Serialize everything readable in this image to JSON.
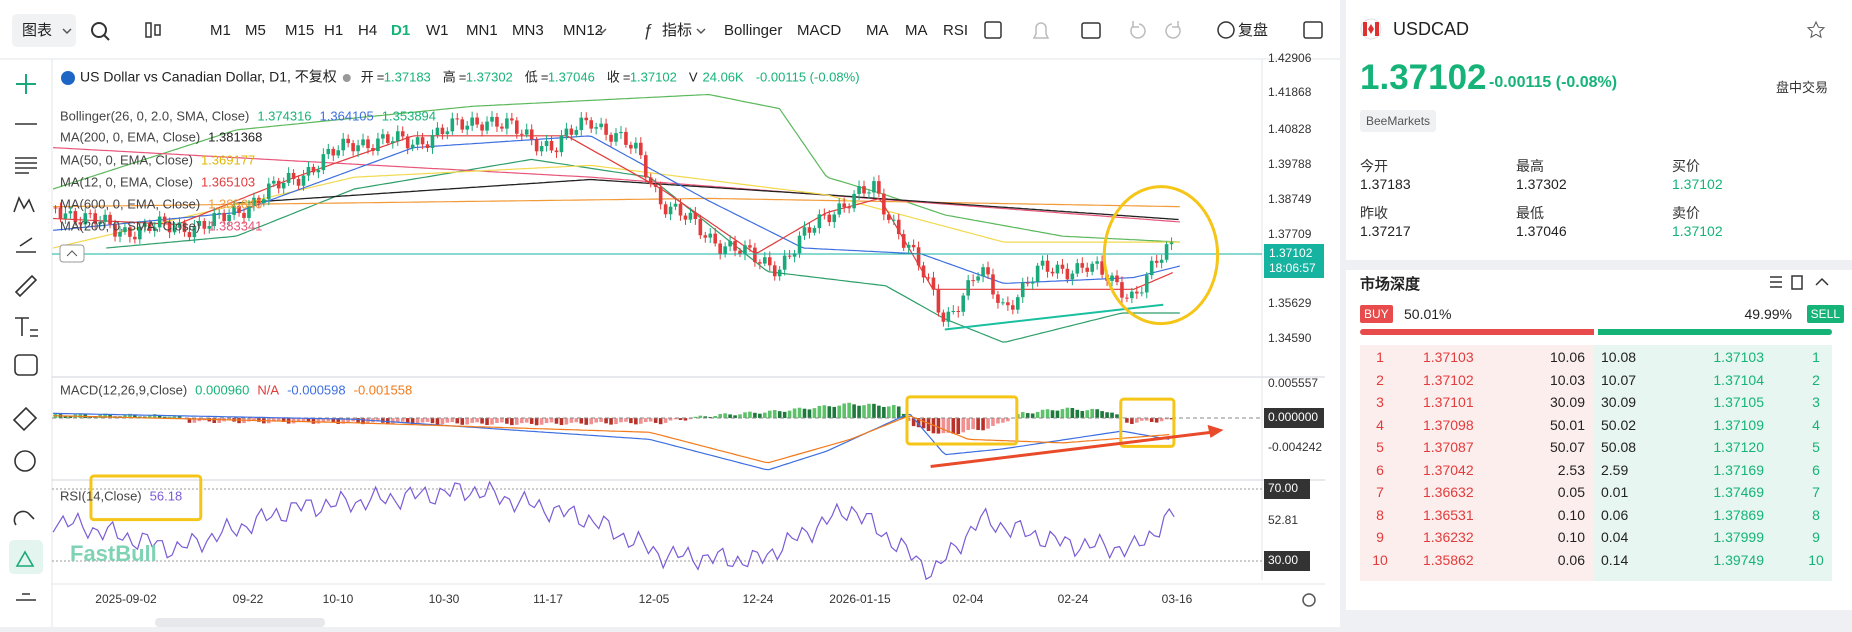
{
  "toolbar": {
    "chart_menu": "图表",
    "intervals": [
      "M1",
      "M5",
      "M15",
      "H1",
      "H4",
      "D1",
      "W1",
      "MN1",
      "MN3",
      "MN12"
    ],
    "indicator_menu": "指标",
    "indicators": [
      "Bollinger",
      "MACD",
      "MA",
      "MA",
      "RSI"
    ],
    "replay": "复盘"
  },
  "chart": {
    "title": "US Dollar vs Canadian Dollar, D1, 不复权",
    "quote": [
      {
        "label": "开",
        "value": "1.37183"
      },
      {
        "label": "高",
        "value": "1.37302"
      },
      {
        "label": "低",
        "value": "1.37046"
      },
      {
        "label": "收",
        "value": "1.37102"
      },
      {
        "label": "V",
        "value": "24.06K"
      }
    ],
    "change": "-0.00115 (-0.08%)",
    "indicators": [
      {
        "name": "Bollinger(26, 0, 2.0, SMA, Close)",
        "values": [
          "1.374316",
          "1.364105",
          "1.353894"
        ]
      },
      {
        "name": "MA(200, 0, EMA, Close)",
        "values": [
          "1.381368"
        ]
      },
      {
        "name": "MA(50, 0, EMA, Close)",
        "values": [
          "1.369177"
        ]
      },
      {
        "name": "MA(12, 0, EMA, Close)",
        "values": [
          "1.365103"
        ]
      },
      {
        "name": "MA(600, 0, EMA, Close)",
        "values": [
          "1.385640"
        ]
      },
      {
        "name": "MA(200, 0, SMA, Close)",
        "values": [
          "1.383341"
        ]
      }
    ],
    "price_axis": [
      "1.42906",
      "1.41868",
      "1.40828",
      "1.39788",
      "1.38749",
      "1.37709",
      "1.35629",
      "1.34590"
    ],
    "last_price": "1.37102",
    "countdown": "18:06:57",
    "macd": {
      "name": "MACD(12,26,9,Close)",
      "values": [
        "0.000960",
        "N/A",
        "-0.000598",
        "-0.001558"
      ],
      "axis": [
        "0.005557",
        "0.000000",
        "-0.004242"
      ]
    },
    "rsi": {
      "name": "RSI(14,Close)",
      "value": "56.18",
      "axis": [
        "70.00",
        "52.81",
        "30.00"
      ]
    },
    "dates": [
      "2025-09-02",
      "09-22",
      "10-10",
      "10-30",
      "11-17",
      "12-05",
      "12-24",
      "2026-01-15",
      "02-04",
      "02-24",
      "03-16"
    ],
    "watermark": "FastBull"
  },
  "quote_panel": {
    "symbol": "USDCAD",
    "price": "1.37102",
    "change": "-0.00115",
    "change_pct": "(-0.08%)",
    "status": "盘中交易",
    "broker": "BeeMarkets",
    "stats": [
      {
        "label": "今开",
        "value": "1.37183"
      },
      {
        "label": "最高",
        "value": "1.37302"
      },
      {
        "label": "买价",
        "value": "1.37102"
      },
      {
        "label": "昨收",
        "value": "1.37217"
      },
      {
        "label": "最低",
        "value": "1.37046"
      },
      {
        "label": "卖价",
        "value": "1.37102"
      }
    ],
    "depth": {
      "title": "市场深度",
      "buy_label": "BUY",
      "buy_pct": "50.01%",
      "sell_pct": "49.99%",
      "sell_label": "SELL",
      "rows": [
        {
          "level": 1,
          "bid": "1.37103",
          "bid_vol": "10.06",
          "ask_vol": "10.08",
          "ask": "1.37103"
        },
        {
          "level": 2,
          "bid": "1.37102",
          "bid_vol": "10.03",
          "ask_vol": "10.07",
          "ask": "1.37104"
        },
        {
          "level": 3,
          "bid": "1.37101",
          "bid_vol": "30.09",
          "ask_vol": "30.09",
          "ask": "1.37105"
        },
        {
          "level": 4,
          "bid": "1.37098",
          "bid_vol": "50.01",
          "ask_vol": "50.02",
          "ask": "1.37109"
        },
        {
          "level": 5,
          "bid": "1.37087",
          "bid_vol": "50.07",
          "ask_vol": "50.08",
          "ask": "1.37120"
        },
        {
          "level": 6,
          "bid": "1.37042",
          "bid_vol": "2.53",
          "ask_vol": "2.59",
          "ask": "1.37169"
        },
        {
          "level": 7,
          "bid": "1.36632",
          "bid_vol": "0.05",
          "ask_vol": "0.01",
          "ask": "1.37469"
        },
        {
          "level": 8,
          "bid": "1.36531",
          "bid_vol": "0.10",
          "ask_vol": "0.06",
          "ask": "1.37869"
        },
        {
          "level": 9,
          "bid": "1.36232",
          "bid_vol": "0.10",
          "ask_vol": "0.04",
          "ask": "1.37999"
        },
        {
          "level": 10,
          "bid": "1.35862",
          "bid_vol": "0.06",
          "ask_vol": "0.14",
          "ask": "1.39749"
        }
      ]
    }
  }
}
